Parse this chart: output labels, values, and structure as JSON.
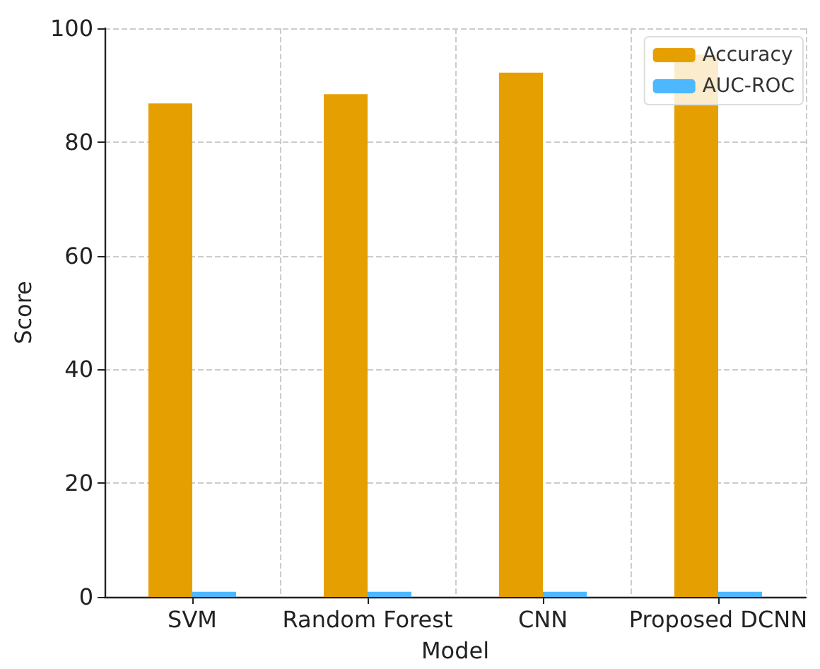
{
  "chart_data": {
    "type": "bar",
    "xlabel": "Model",
    "ylabel": "Score",
    "categories": [
      "SVM",
      "Random Forest",
      "CNN",
      "Proposed DCNN"
    ],
    "series": [
      {
        "name": "Accuracy",
        "color": "#e69f00",
        "values": [
          86.8,
          88.4,
          92.2,
          95.4
        ]
      },
      {
        "name": "AUC-ROC",
        "color": "#4db8ff",
        "values": [
          0.9,
          0.9,
          0.9,
          0.9
        ]
      }
    ],
    "ylim": [
      0,
      100
    ],
    "yticks": [
      0,
      20,
      40,
      60,
      80,
      100
    ],
    "grid": true,
    "legend": "top right"
  }
}
